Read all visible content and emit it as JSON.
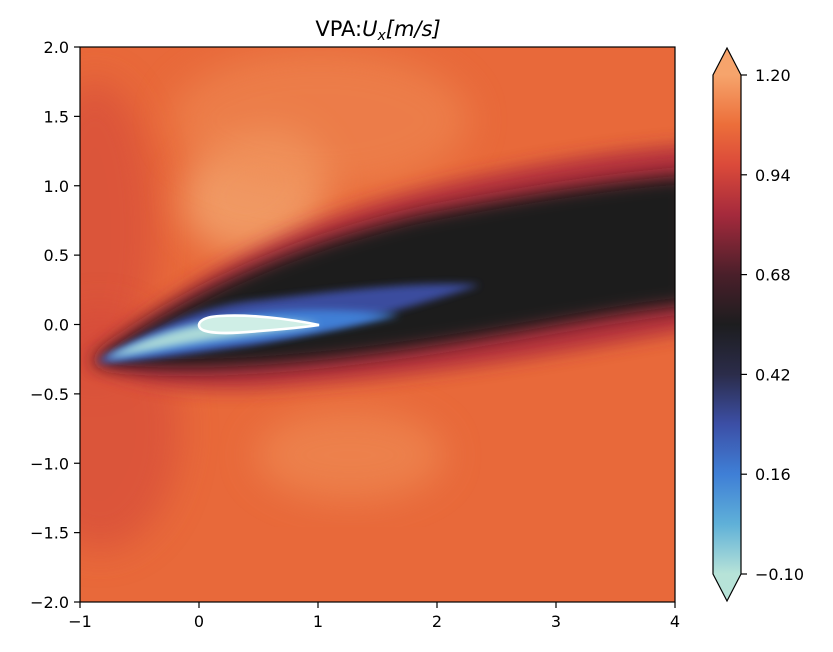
{
  "chart_data": {
    "type": "heatmap",
    "title": "VPA:U_x[m/s]",
    "title_parts": {
      "prefix": "VPA:",
      "symbol": "U",
      "subscript": "x",
      "unit": "[m/s]"
    },
    "xlim": [
      -1,
      4
    ],
    "ylim": [
      -2,
      2
    ],
    "xticks": [
      "−1",
      "0",
      "1",
      "2",
      "3",
      "4"
    ],
    "yticks": [
      "2.0",
      "1.5",
      "1.0",
      "0.5",
      "0.0",
      "−0.5",
      "−1.0",
      "−1.5",
      "−2.0"
    ],
    "colorbar": {
      "vmin": -0.1,
      "vmax": 1.2,
      "ticks": [
        "1.20",
        "0.94",
        "0.68",
        "0.42",
        "0.16",
        "−0.10"
      ],
      "extend": "both",
      "colormap": "icefire"
    },
    "field_description": "velocity magnitude around an airfoil at positive angle of attack; free stream about 1.0, slow wake trailing upward-right, low-velocity core near the airfoil",
    "airfoil": {
      "chord_start": 0,
      "chord_end": 1,
      "outline_color": "#ffffff"
    },
    "colors": {
      "freestream": "#e6693a",
      "wake_core": "#1d1d1f",
      "slow_core": "#b7e3d8",
      "mid_blue": "#3f7fd6",
      "fast_lobe": "#f09a62"
    }
  }
}
